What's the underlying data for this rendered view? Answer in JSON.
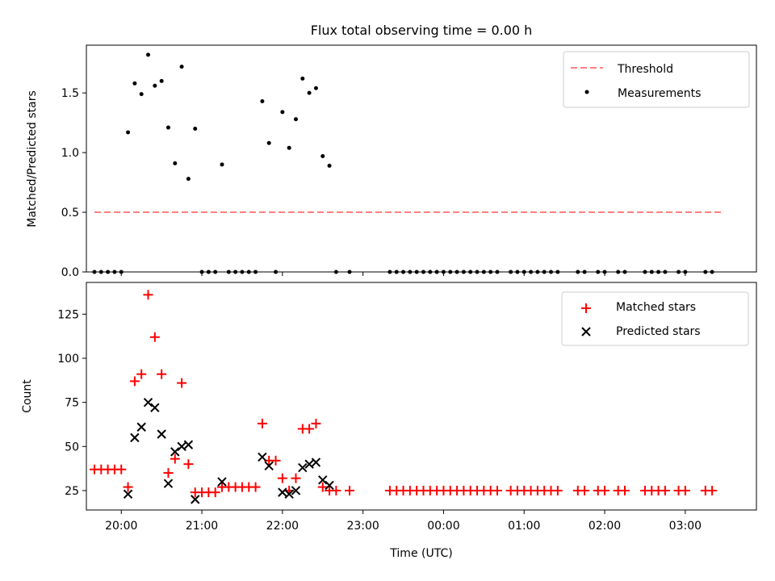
{
  "chart_data": [
    {
      "type": "scatter",
      "title": "Flux total observing time = 0.00 h",
      "xlabel": "",
      "ylabel": "Matched/Predicted stars",
      "ylim": [
        0,
        1.9
      ],
      "xlim": [
        "19:34",
        "03:53"
      ],
      "yticks": [
        "0.0",
        "0.5",
        "1.0",
        "1.5"
      ],
      "legend_position": "upper right",
      "threshold": {
        "name": "Threshold",
        "value": 0.5,
        "x_start": "19:40",
        "x_end": "03:28",
        "color": "#ff7f7f",
        "style": "dashed"
      },
      "series": [
        {
          "name": "Measurements",
          "color": "#000000",
          "marker": "dot",
          "x": [
            "19:40",
            "19:45",
            "19:50",
            "19:55",
            "20:00",
            "20:05",
            "20:10",
            "20:15",
            "20:20",
            "20:25",
            "20:30",
            "20:35",
            "20:40",
            "20:45",
            "20:50",
            "20:55",
            "21:00",
            "21:05",
            "21:10",
            "21:15",
            "21:20",
            "21:25",
            "21:30",
            "21:35",
            "21:40",
            "21:45",
            "21:50",
            "21:55",
            "22:00",
            "22:05",
            "22:10",
            "22:15",
            "22:20",
            "22:25",
            "22:30",
            "22:35",
            "22:40",
            "22:50",
            "23:20",
            "23:25",
            "23:30",
            "23:35",
            "23:40",
            "23:45",
            "23:50",
            "23:55",
            "00:00",
            "00:05",
            "00:10",
            "00:15",
            "00:20",
            "00:25",
            "00:30",
            "00:35",
            "00:40",
            "00:50",
            "00:55",
            "01:00",
            "01:05",
            "01:10",
            "01:15",
            "01:20",
            "01:25",
            "01:40",
            "01:45",
            "01:55",
            "02:00",
            "02:10",
            "02:15",
            "02:30",
            "02:35",
            "02:40",
            "02:45",
            "02:55",
            "03:00",
            "03:15",
            "03:20"
          ],
          "y": [
            0,
            0,
            0,
            0,
            0,
            1.17,
            1.58,
            1.49,
            1.82,
            1.56,
            1.6,
            1.21,
            0.91,
            1.72,
            0.78,
            1.2,
            0,
            0,
            0,
            0.9,
            0,
            0,
            0,
            0,
            0,
            1.43,
            1.08,
            0,
            1.34,
            1.04,
            1.28,
            1.62,
            1.5,
            1.54,
            0.97,
            0.89,
            0,
            0,
            0,
            0,
            0,
            0,
            0,
            0,
            0,
            0,
            0,
            0,
            0,
            0,
            0,
            0,
            0,
            0,
            0,
            0,
            0,
            0,
            0,
            0,
            0,
            0,
            0,
            0,
            0,
            0,
            0,
            0,
            0,
            0,
            0,
            0,
            0,
            0,
            0,
            0,
            0
          ]
        }
      ]
    },
    {
      "type": "scatter",
      "title": "",
      "xlabel": "Time (UTC)",
      "ylabel": "Count",
      "ylim": [
        14,
        143
      ],
      "xlim": [
        "19:34",
        "03:53"
      ],
      "yticks": [
        "25",
        "50",
        "75",
        "100",
        "125"
      ],
      "xticks": [
        "20:00",
        "21:00",
        "22:00",
        "23:00",
        "00:00",
        "01:00",
        "02:00",
        "03:00"
      ],
      "legend_position": "upper right",
      "series": [
        {
          "name": "Matched stars",
          "color": "#ff0000",
          "marker": "plus",
          "x": [
            "19:40",
            "19:45",
            "19:50",
            "19:55",
            "20:00",
            "20:05",
            "20:10",
            "20:15",
            "20:20",
            "20:25",
            "20:30",
            "20:35",
            "20:40",
            "20:45",
            "20:50",
            "20:55",
            "21:00",
            "21:05",
            "21:10",
            "21:15",
            "21:20",
            "21:25",
            "21:30",
            "21:35",
            "21:40",
            "21:45",
            "21:50",
            "21:55",
            "22:00",
            "22:05",
            "22:10",
            "22:15",
            "22:20",
            "22:25",
            "22:30",
            "22:35",
            "22:40",
            "22:50",
            "23:20",
            "23:25",
            "23:30",
            "23:35",
            "23:40",
            "23:45",
            "23:50",
            "23:55",
            "00:00",
            "00:05",
            "00:10",
            "00:15",
            "00:20",
            "00:25",
            "00:30",
            "00:35",
            "00:40",
            "00:50",
            "00:55",
            "01:00",
            "01:05",
            "01:10",
            "01:15",
            "01:20",
            "01:25",
            "01:40",
            "01:45",
            "01:55",
            "02:00",
            "02:10",
            "02:15",
            "02:30",
            "02:35",
            "02:40",
            "02:45",
            "02:55",
            "03:00",
            "03:15",
            "03:20"
          ],
          "y": [
            37,
            37,
            37,
            37,
            37,
            27,
            87,
            91,
            136,
            112,
            91,
            35,
            43,
            86,
            40,
            24,
            24,
            24,
            24,
            27,
            27,
            27,
            27,
            27,
            27,
            63,
            42,
            42,
            32,
            25,
            32,
            60,
            60,
            63,
            27,
            25,
            25,
            25,
            25,
            25,
            25,
            25,
            25,
            25,
            25,
            25,
            25,
            25,
            25,
            25,
            25,
            25,
            25,
            25,
            25,
            25,
            25,
            25,
            25,
            25,
            25,
            25,
            25,
            25,
            25,
            25,
            25,
            25,
            25,
            25,
            25,
            25,
            25,
            25,
            25,
            25,
            25
          ]
        },
        {
          "name": "Predicted stars",
          "color": "#000000",
          "marker": "x",
          "x": [
            "20:05",
            "20:10",
            "20:15",
            "20:20",
            "20:25",
            "20:30",
            "20:35",
            "20:40",
            "20:45",
            "20:50",
            "20:55",
            "21:15",
            "21:45",
            "21:50",
            "22:00",
            "22:05",
            "22:10",
            "22:15",
            "22:20",
            "22:25",
            "22:30",
            "22:35"
          ],
          "y": [
            23,
            55,
            61,
            75,
            72,
            57,
            29,
            47,
            50,
            51,
            20,
            30,
            44,
            39,
            24,
            23,
            25,
            38,
            40,
            41,
            31,
            28
          ]
        }
      ]
    }
  ]
}
